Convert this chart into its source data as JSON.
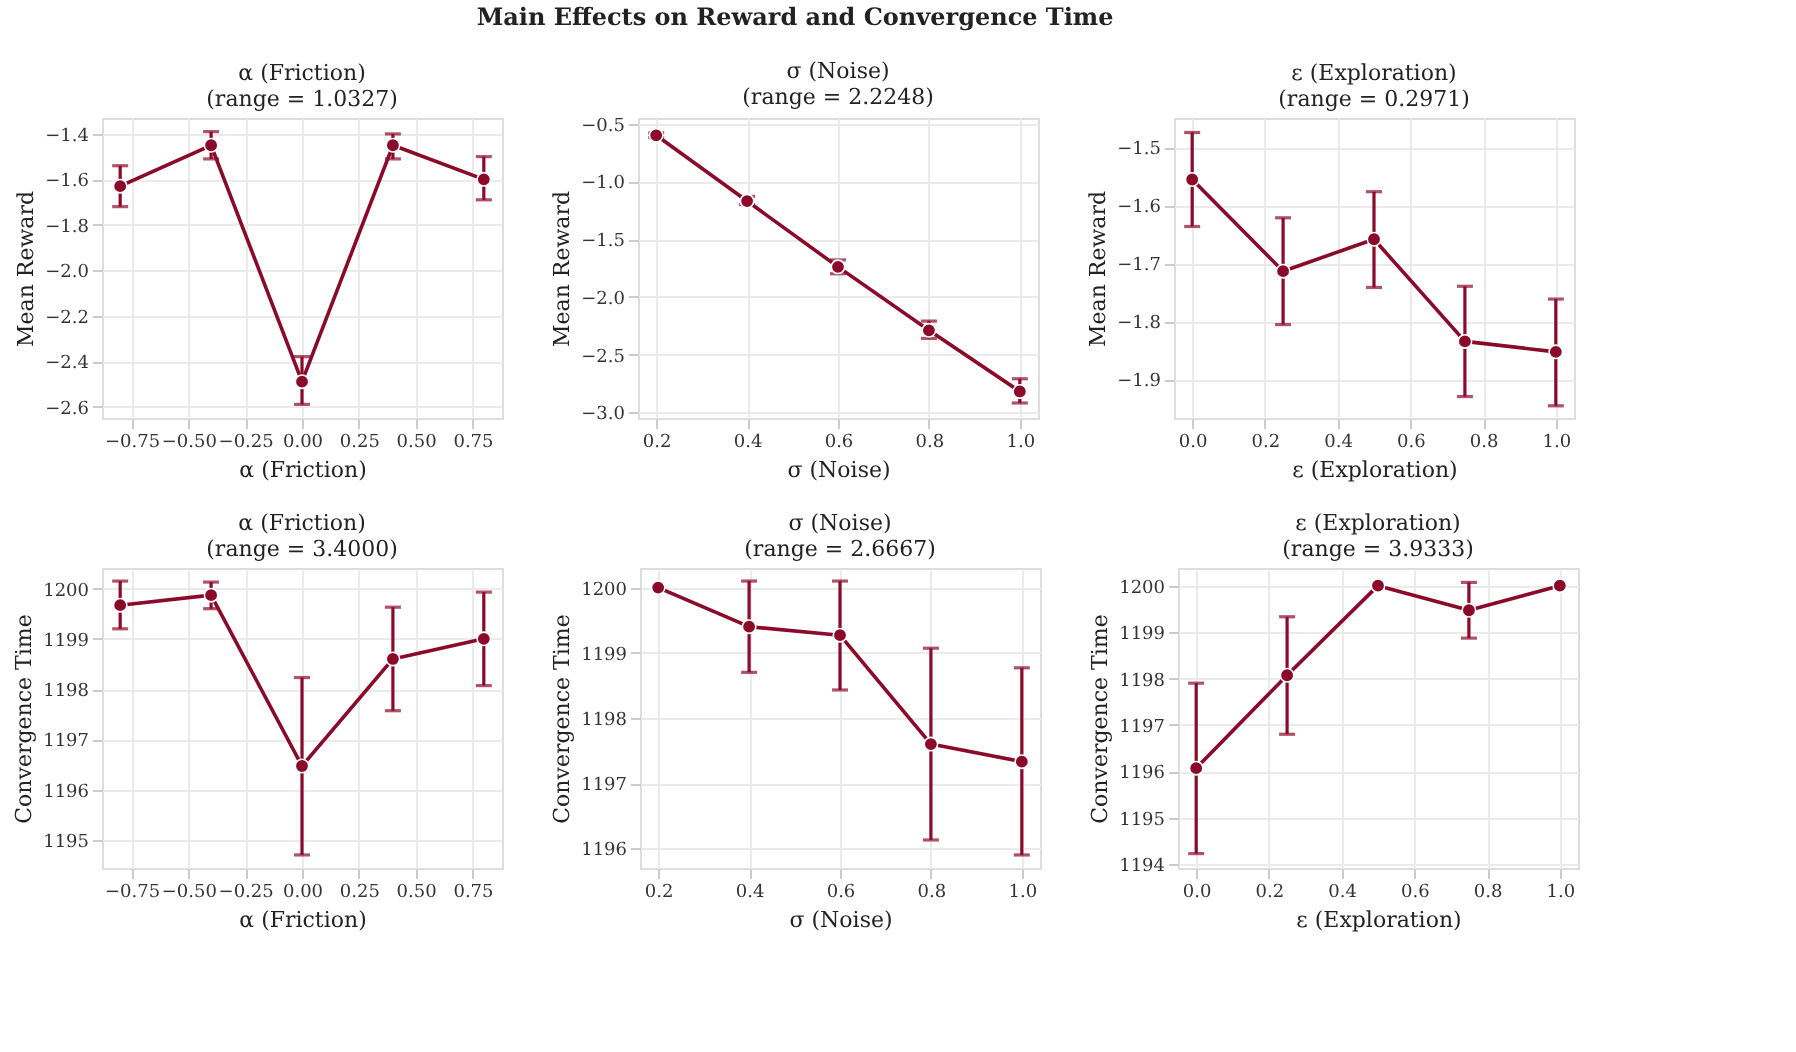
{
  "chart_data": [
    {
      "type": "line",
      "title": "α (Friction)",
      "subtitle": "(range = 1.0327)",
      "annotations": [
        "Main Effects on Reward and Convergence Time"
      ],
      "xlabel": "α (Friction)",
      "ylabel": "Mean Reward",
      "x": [
        -0.8,
        -0.4,
        0.0,
        0.4,
        0.8
      ],
      "series": [
        {
          "color": "#8b0a2a",
          "values": [
            -1.63,
            -1.45,
            -2.49,
            -1.45,
            -1.6
          ],
          "errors": [
            [
              -1.72,
              -1.54
            ],
            [
              -1.51,
              -1.39
            ],
            [
              -2.59,
              -2.38
            ],
            [
              -1.51,
              -1.4
            ],
            [
              -1.69,
              -1.5
            ]
          ]
        }
      ],
      "xlim": [
        -0.88,
        0.88
      ],
      "xticks": [
        {
          "value": -0.75,
          "label": "−0.75"
        },
        {
          "value": -0.5,
          "label": "−0.50"
        },
        {
          "value": -0.25,
          "label": "−0.25"
        },
        {
          "value": 0,
          "label": "0.00"
        },
        {
          "value": 0.25,
          "label": "0.25"
        },
        {
          "value": 0.5,
          "label": "0.50"
        },
        {
          "value": 0.75,
          "label": "0.75"
        }
      ],
      "ylim": [
        -2.65,
        -1.33
      ],
      "yticks": [
        {
          "value": -2.6,
          "label": "−2.6"
        },
        {
          "value": -2.4,
          "label": "−2.4"
        },
        {
          "value": -2.2,
          "label": "−2.2"
        },
        {
          "value": -2.0,
          "label": "−2.0"
        },
        {
          "value": -1.8,
          "label": "−1.8"
        },
        {
          "value": -1.6,
          "label": "−1.6"
        },
        {
          "value": -1.4,
          "label": "−1.4"
        }
      ],
      "grid": true,
      "marker": "circle",
      "line_style": "solid"
    },
    {
      "type": "line",
      "title": "σ (Noise)",
      "subtitle": "(range = 2.2248)",
      "xlabel": "σ (Noise)",
      "ylabel": "Mean Reward",
      "x": [
        0.2,
        0.4,
        0.6,
        0.8,
        1.0
      ],
      "series": [
        {
          "color": "#8b0a2a",
          "values": [
            -0.6,
            -1.17,
            -1.74,
            -2.29,
            -2.82
          ],
          "errors": [
            [
              -0.62,
              -0.58
            ],
            [
              -1.2,
              -1.13
            ],
            [
              -1.8,
              -1.68
            ],
            [
              -2.36,
              -2.21
            ],
            [
              -2.92,
              -2.71
            ]
          ]
        }
      ],
      "xlim": [
        0.16,
        1.04
      ],
      "xticks": [
        {
          "value": 0.2,
          "label": "0.2"
        },
        {
          "value": 0.4,
          "label": "0.4"
        },
        {
          "value": 0.6,
          "label": "0.6"
        },
        {
          "value": 0.8,
          "label": "0.8"
        },
        {
          "value": 1.0,
          "label": "1.0"
        }
      ],
      "ylim": [
        -3.05,
        -0.45
      ],
      "yticks": [
        {
          "value": -3.0,
          "label": "−3.0"
        },
        {
          "value": -2.5,
          "label": "−2.5"
        },
        {
          "value": -2.0,
          "label": "−2.0"
        },
        {
          "value": -1.5,
          "label": "−1.5"
        },
        {
          "value": -1.0,
          "label": "−1.0"
        },
        {
          "value": -0.5,
          "label": "−0.5"
        }
      ],
      "grid": true,
      "marker": "circle",
      "line_style": "solid"
    },
    {
      "type": "line",
      "title": "ε (Exploration)",
      "subtitle": "(range = 0.2971)",
      "xlabel": "ε (Exploration)",
      "ylabel": "Mean Reward",
      "x": [
        0.0,
        0.25,
        0.5,
        0.75,
        1.0
      ],
      "series": [
        {
          "color": "#8b0a2a",
          "values": [
            -1.556,
            -1.714,
            -1.659,
            -1.835,
            -1.853
          ],
          "errors": [
            [
              -1.637,
              -1.475
            ],
            [
              -1.806,
              -1.622
            ],
            [
              -1.742,
              -1.577
            ],
            [
              -1.93,
              -1.74
            ],
            [
              -1.946,
              -1.762
            ]
          ]
        }
      ],
      "xlim": [
        -0.05,
        1.05
      ],
      "xticks": [
        {
          "value": 0,
          "label": "0.0"
        },
        {
          "value": 0.2,
          "label": "0.2"
        },
        {
          "value": 0.4,
          "label": "0.4"
        },
        {
          "value": 0.6,
          "label": "0.6"
        },
        {
          "value": 0.8,
          "label": "0.8"
        },
        {
          "value": 1.0,
          "label": "1.0"
        }
      ],
      "ylim": [
        -1.967,
        -1.45
      ],
      "yticks": [
        {
          "value": -1.9,
          "label": "−1.9"
        },
        {
          "value": -1.8,
          "label": "−1.8"
        },
        {
          "value": -1.7,
          "label": "−1.7"
        },
        {
          "value": -1.6,
          "label": "−1.6"
        },
        {
          "value": -1.5,
          "label": "−1.5"
        }
      ],
      "grid": true,
      "marker": "circle",
      "line_style": "solid"
    },
    {
      "type": "line",
      "title": "α (Friction)",
      "subtitle": "(range = 3.4000)",
      "xlabel": "α (Friction)",
      "ylabel": "Convergence Time",
      "x": [
        -0.8,
        -0.4,
        0.0,
        0.4,
        0.8
      ],
      "series": [
        {
          "color": "#8b0a2a",
          "values": [
            1199.67,
            1199.87,
            1196.47,
            1198.6,
            1199.0
          ],
          "errors": [
            [
              1199.2,
              1200.15
            ],
            [
              1199.6,
              1200.13
            ],
            [
              1194.7,
              1198.23
            ],
            [
              1197.57,
              1199.63
            ],
            [
              1198.07,
              1199.93
            ]
          ]
        }
      ],
      "xlim": [
        -0.88,
        0.88
      ],
      "xticks": [
        {
          "value": -0.75,
          "label": "−0.75"
        },
        {
          "value": -0.5,
          "label": "−0.50"
        },
        {
          "value": -0.25,
          "label": "−0.25"
        },
        {
          "value": 0,
          "label": "0.00"
        },
        {
          "value": 0.25,
          "label": "0.25"
        },
        {
          "value": 0.5,
          "label": "0.50"
        },
        {
          "value": 0.75,
          "label": "0.75"
        }
      ],
      "ylim": [
        1194.44,
        1200.41
      ],
      "yticks": [
        1195,
        1196,
        1197,
        1198,
        1199,
        1200
      ],
      "grid": true,
      "marker": "circle",
      "line_style": "solid"
    },
    {
      "type": "line",
      "title": "σ (Noise)",
      "subtitle": "(range = 2.6667)",
      "xlabel": "σ (Noise)",
      "ylabel": "Convergence Time",
      "x": [
        0.2,
        0.4,
        0.6,
        0.8,
        1.0
      ],
      "series": [
        {
          "color": "#8b0a2a",
          "values": [
            1200.0,
            1199.4,
            1199.27,
            1197.6,
            1197.33
          ],
          "errors": [
            null,
            [
              1198.7,
              1200.1
            ],
            [
              1198.43,
              1200.1
            ],
            [
              1196.13,
              1199.07
            ],
            [
              1195.9,
              1198.77
            ]
          ]
        }
      ],
      "xlim": [
        0.16,
        1.04
      ],
      "xticks": [
        {
          "value": 0.2,
          "label": "0.2"
        },
        {
          "value": 0.4,
          "label": "0.4"
        },
        {
          "value": 0.6,
          "label": "0.6"
        },
        {
          "value": 0.8,
          "label": "0.8"
        },
        {
          "value": 1.0,
          "label": "1.0"
        }
      ],
      "ylim": [
        1195.7,
        1200.3
      ],
      "yticks": [
        1196,
        1197,
        1198,
        1199,
        1200
      ],
      "grid": true,
      "marker": "circle",
      "line_style": "solid"
    },
    {
      "type": "line",
      "title": "ε (Exploration)",
      "subtitle": "(range = 3.9333)",
      "xlabel": "ε (Exploration)",
      "ylabel": "Convergence Time",
      "x": [
        0.0,
        0.25,
        0.5,
        0.75,
        1.0
      ],
      "series": [
        {
          "color": "#8b0a2a",
          "values": [
            1196.07,
            1198.07,
            1200.0,
            1199.47,
            1200.0
          ],
          "errors": [
            [
              1194.23,
              1197.9
            ],
            [
              1196.8,
              1199.33
            ],
            null,
            [
              1198.87,
              1200.07
            ],
            null
          ]
        }
      ],
      "xlim": [
        -0.05,
        1.05
      ],
      "xticks": [
        {
          "value": 0,
          "label": "0.0"
        },
        {
          "value": 0.2,
          "label": "0.2"
        },
        {
          "value": 0.4,
          "label": "0.4"
        },
        {
          "value": 0.6,
          "label": "0.6"
        },
        {
          "value": 0.8,
          "label": "0.8"
        },
        {
          "value": 1.0,
          "label": "1.0"
        }
      ],
      "ylim": [
        1193.92,
        1200.38
      ],
      "yticks": [
        1194,
        1195,
        1196,
        1197,
        1198,
        1199,
        1200
      ],
      "grid": true,
      "marker": "circle",
      "line_style": "solid"
    }
  ]
}
